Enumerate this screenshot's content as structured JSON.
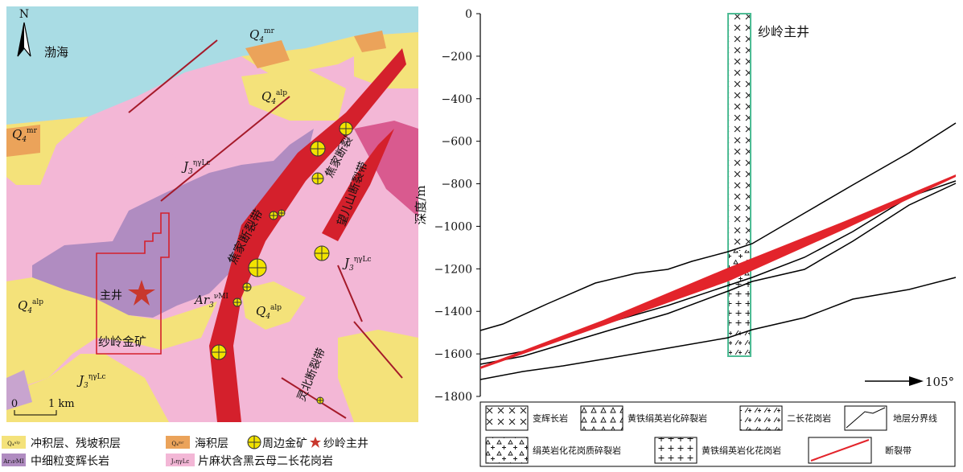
{
  "map": {
    "north": "N",
    "sea": "渤海",
    "units": [
      {
        "base": "Q",
        "sub": "4",
        "sup": "mr"
      },
      {
        "base": "Q",
        "sub": "4",
        "sup": "alp"
      },
      {
        "base": "Q",
        "sub": "4",
        "sup": "mr"
      },
      {
        "base": "J",
        "sub": "3",
        "sup": "ηγLc"
      },
      {
        "base": "J",
        "sub": "3",
        "sup": "ηγLc"
      },
      {
        "base": "Ar",
        "sub": "3",
        "sup": "νMI"
      },
      {
        "base": "Q",
        "sub": "4",
        "sup": "alp"
      },
      {
        "base": "Q",
        "sub": "4",
        "sup": "alp"
      },
      {
        "base": "J",
        "sub": "3",
        "sup": "ηγLc"
      }
    ],
    "labels": [
      "焦家断裂带",
      "望儿山断裂带",
      "灵北断裂带",
      "焦家断裂",
      "主井",
      "纱岭金矿"
    ],
    "scale": [
      "0",
      "1 km"
    ]
  },
  "map_legend": {
    "items": [
      {
        "swatch": "Q₄ᵃˡᵖ",
        "text": "冲积层、残坡积层"
      },
      {
        "swatch": "Q₄ᵐʳ",
        "text": "海积层"
      },
      {
        "text": "周边金矿"
      },
      {
        "text": "纱岭主井"
      },
      {
        "swatch": "Ar₃νMI",
        "text": "中细粒变辉长岩"
      },
      {
        "swatch": "J₃ηγLc",
        "text": "片麻状含黑云母二长花岗岩"
      }
    ]
  },
  "section": {
    "ylabel": "深度/m",
    "well": "纱岭主井",
    "direction": "105°",
    "ylim": [
      -1800,
      0
    ],
    "yticks": [
      0,
      {
        "value": -200,
        "label": "−200"
      },
      {
        "value": -400,
        "label": "−400"
      },
      {
        "value": -600,
        "label": "−600"
      },
      {
        "value": -800,
        "label": "−800"
      },
      {
        "value": -1000,
        "label": "−1000"
      },
      {
        "value": -1200,
        "label": "−1200"
      },
      {
        "value": -1400,
        "label": "−1400"
      },
      {
        "value": -1600,
        "label": "−1600"
      },
      {
        "value": -1800,
        "label": "−1800"
      }
    ],
    "legend": [
      "变辉长岩",
      "黄铁绢英岩化碎裂岩",
      "二长花岗岩",
      "地层分界线",
      "绢英岩化花岗质碎裂岩",
      "黄铁绢英岩化花岗岩",
      "断裂带"
    ]
  }
}
